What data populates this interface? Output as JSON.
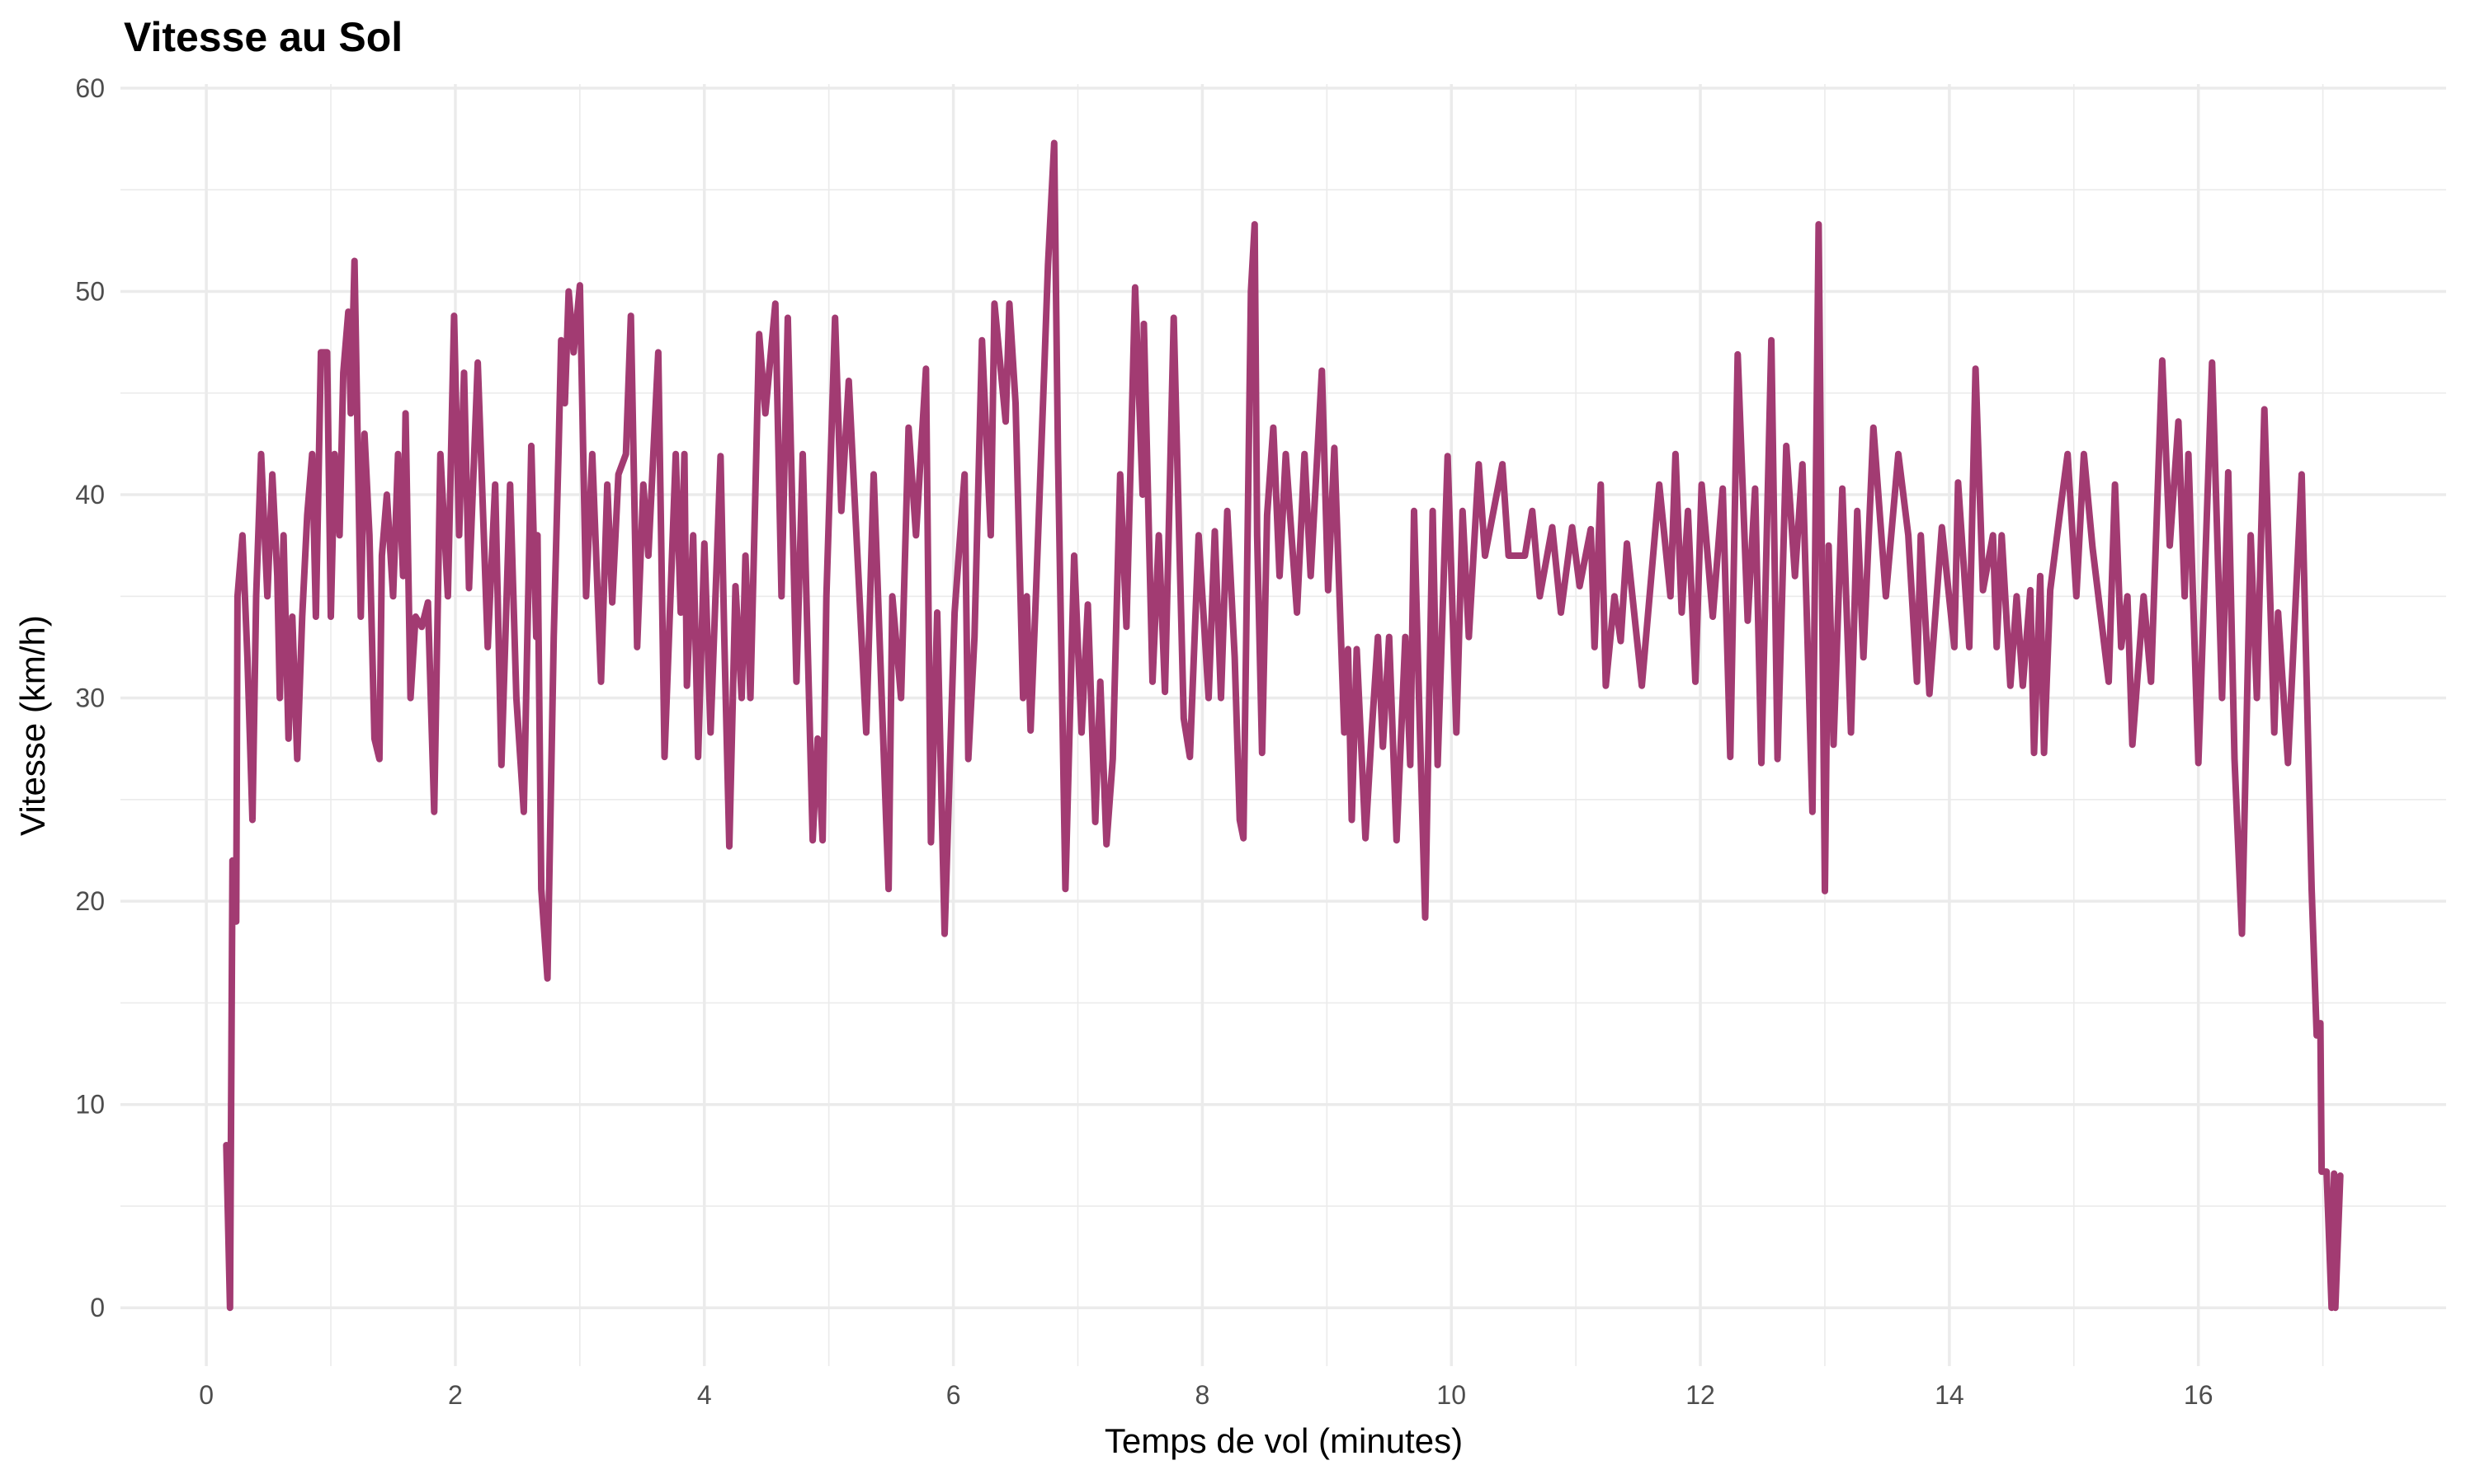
{
  "chart_data": {
    "type": "line",
    "title": "Vitesse au Sol",
    "xlabel": "Temps de vol (minutes)",
    "ylabel": "Vitesse (km/h)",
    "xlim": [
      -0.69,
      17.99
    ],
    "ylim": [
      -2.87,
      60.2
    ],
    "xticks": [
      0,
      2,
      4,
      6,
      8,
      10,
      12,
      14,
      16
    ],
    "yticks": [
      0,
      10,
      20,
      30,
      40,
      50,
      60
    ],
    "grid": true,
    "line_color": "#A23B72",
    "grid_color": "#EBEBEB",
    "series": [
      {
        "points": [
          [
            0.16,
            8
          ],
          [
            0.19,
            0
          ],
          [
            0.21,
            22
          ],
          [
            0.24,
            19
          ],
          [
            0.25,
            35
          ],
          [
            0.29,
            38
          ],
          [
            0.33,
            32
          ],
          [
            0.37,
            24
          ],
          [
            0.4,
            35
          ],
          [
            0.44,
            42
          ],
          [
            0.49,
            35
          ],
          [
            0.53,
            41
          ],
          [
            0.57,
            36
          ],
          [
            0.59,
            30
          ],
          [
            0.62,
            38
          ],
          [
            0.66,
            28
          ],
          [
            0.69,
            34
          ],
          [
            0.73,
            27
          ],
          [
            0.77,
            34
          ],
          [
            0.81,
            39
          ],
          [
            0.85,
            42
          ],
          [
            0.88,
            34
          ],
          [
            0.92,
            47
          ],
          [
            0.97,
            47
          ],
          [
            1.0,
            34
          ],
          [
            1.03,
            42
          ],
          [
            1.07,
            38
          ],
          [
            1.1,
            46
          ],
          [
            1.14,
            49
          ],
          [
            1.16,
            44
          ],
          [
            1.19,
            51.5
          ],
          [
            1.24,
            34
          ],
          [
            1.27,
            43
          ],
          [
            1.31,
            38
          ],
          [
            1.35,
            28
          ],
          [
            1.39,
            27
          ],
          [
            1.41,
            37
          ],
          [
            1.45,
            40
          ],
          [
            1.5,
            35
          ],
          [
            1.54,
            42
          ],
          [
            1.58,
            36
          ],
          [
            1.6,
            44
          ],
          [
            1.64,
            30
          ],
          [
            1.68,
            34
          ],
          [
            1.73,
            33.5
          ],
          [
            1.78,
            34.7
          ],
          [
            1.83,
            24.4
          ],
          [
            1.88,
            42
          ],
          [
            1.94,
            35
          ],
          [
            1.99,
            48.8
          ],
          [
            2.03,
            38
          ],
          [
            2.07,
            46
          ],
          [
            2.11,
            35.4
          ],
          [
            2.18,
            46.5
          ],
          [
            2.26,
            32.5
          ],
          [
            2.32,
            40.5
          ],
          [
            2.37,
            26.7
          ],
          [
            2.44,
            40.5
          ],
          [
            2.49,
            30
          ],
          [
            2.55,
            24.4
          ],
          [
            2.61,
            42.4
          ],
          [
            2.65,
            33
          ],
          [
            2.66,
            38
          ],
          [
            2.69,
            20.6
          ],
          [
            2.74,
            16.2
          ],
          [
            2.79,
            33
          ],
          [
            2.83,
            42.4
          ],
          [
            2.85,
            47.6
          ],
          [
            2.88,
            44.5
          ],
          [
            2.91,
            50
          ],
          [
            2.95,
            47
          ],
          [
            3.0,
            50.3
          ],
          [
            3.05,
            35
          ],
          [
            3.1,
            42
          ],
          [
            3.17,
            30.8
          ],
          [
            3.22,
            40.5
          ],
          [
            3.26,
            34.7
          ],
          [
            3.31,
            41
          ],
          [
            3.37,
            42
          ],
          [
            3.41,
            48.8
          ],
          [
            3.46,
            32.5
          ],
          [
            3.51,
            40.5
          ],
          [
            3.55,
            37
          ],
          [
            3.63,
            47
          ],
          [
            3.68,
            27.1
          ],
          [
            3.77,
            42
          ],
          [
            3.81,
            34.2
          ],
          [
            3.84,
            42
          ],
          [
            3.86,
            30.6
          ],
          [
            3.91,
            38
          ],
          [
            3.95,
            27.1
          ],
          [
            4.0,
            37.6
          ],
          [
            4.05,
            28.3
          ],
          [
            4.13,
            41.9
          ],
          [
            4.16,
            33
          ],
          [
            4.2,
            22.7
          ],
          [
            4.25,
            35.5
          ],
          [
            4.3,
            30
          ],
          [
            4.33,
            37
          ],
          [
            4.37,
            30
          ],
          [
            4.44,
            47.9
          ],
          [
            4.49,
            44
          ],
          [
            4.57,
            49.4
          ],
          [
            4.62,
            35
          ],
          [
            4.67,
            48.7
          ],
          [
            4.74,
            30.8
          ],
          [
            4.79,
            42
          ],
          [
            4.87,
            23
          ],
          [
            4.91,
            28
          ],
          [
            4.95,
            23
          ],
          [
            4.98,
            35
          ],
          [
            5.05,
            48.7
          ],
          [
            5.1,
            39.2
          ],
          [
            5.16,
            45.6
          ],
          [
            5.3,
            28.3
          ],
          [
            5.36,
            41
          ],
          [
            5.48,
            20.6
          ],
          [
            5.51,
            35
          ],
          [
            5.58,
            30
          ],
          [
            5.64,
            43.3
          ],
          [
            5.7,
            38
          ],
          [
            5.78,
            46.2
          ],
          [
            5.82,
            22.9
          ],
          [
            5.87,
            34.2
          ],
          [
            5.93,
            18.4
          ],
          [
            6.01,
            34.2
          ],
          [
            6.09,
            41
          ],
          [
            6.12,
            27
          ],
          [
            6.17,
            33
          ],
          [
            6.23,
            47.6
          ],
          [
            6.3,
            38
          ],
          [
            6.33,
            49.4
          ],
          [
            6.42,
            43.6
          ],
          [
            6.45,
            49.4
          ],
          [
            6.5,
            44.5
          ],
          [
            6.56,
            30
          ],
          [
            6.59,
            35
          ],
          [
            6.62,
            28.4
          ],
          [
            6.66,
            34.6
          ],
          [
            6.73,
            46.2
          ],
          [
            6.76,
            51.3
          ],
          [
            6.81,
            57.3
          ],
          [
            6.84,
            42
          ],
          [
            6.9,
            20.6
          ],
          [
            6.97,
            37
          ],
          [
            7.03,
            28.3
          ],
          [
            7.08,
            34.6
          ],
          [
            7.14,
            23.9
          ],
          [
            7.18,
            30.8
          ],
          [
            7.23,
            22.8
          ],
          [
            7.28,
            27
          ],
          [
            7.34,
            41
          ],
          [
            7.39,
            33.5
          ],
          [
            7.46,
            50.2
          ],
          [
            7.52,
            40
          ],
          [
            7.53,
            48.4
          ],
          [
            7.6,
            30.8
          ],
          [
            7.65,
            38
          ],
          [
            7.7,
            30.3
          ],
          [
            7.77,
            48.7
          ],
          [
            7.85,
            29
          ],
          [
            7.9,
            27.1
          ],
          [
            7.97,
            38
          ],
          [
            8.05,
            30
          ],
          [
            8.1,
            38.2
          ],
          [
            8.15,
            30
          ],
          [
            8.2,
            39.2
          ],
          [
            8.26,
            32
          ],
          [
            8.3,
            24
          ],
          [
            8.33,
            23.1
          ],
          [
            8.35,
            32
          ],
          [
            8.39,
            50
          ],
          [
            8.42,
            53.3
          ],
          [
            8.44,
            38
          ],
          [
            8.48,
            27.3
          ],
          [
            8.52,
            39
          ],
          [
            8.57,
            43.3
          ],
          [
            8.62,
            36
          ],
          [
            8.67,
            42
          ],
          [
            8.76,
            34.2
          ],
          [
            8.82,
            42
          ],
          [
            8.87,
            36
          ],
          [
            8.96,
            46.1
          ],
          [
            9.01,
            35.3
          ],
          [
            9.06,
            42.3
          ],
          [
            9.14,
            28.3
          ],
          [
            9.17,
            32.4
          ],
          [
            9.2,
            24
          ],
          [
            9.24,
            32.4
          ],
          [
            9.31,
            23.1
          ],
          [
            9.36,
            28.3
          ],
          [
            9.41,
            33
          ],
          [
            9.45,
            27.6
          ],
          [
            9.5,
            33
          ],
          [
            9.56,
            23
          ],
          [
            9.63,
            33
          ],
          [
            9.67,
            26.7
          ],
          [
            9.7,
            39.2
          ],
          [
            9.74,
            30
          ],
          [
            9.79,
            19.2
          ],
          [
            9.85,
            39.2
          ],
          [
            9.89,
            26.7
          ],
          [
            9.97,
            41.9
          ],
          [
            10.04,
            28.3
          ],
          [
            10.09,
            39.2
          ],
          [
            10.14,
            33
          ],
          [
            10.22,
            41.5
          ],
          [
            10.27,
            37
          ],
          [
            10.41,
            41.5
          ],
          [
            10.46,
            37
          ],
          [
            10.59,
            37
          ],
          [
            10.65,
            39.2
          ],
          [
            10.71,
            35
          ],
          [
            10.81,
            38.4
          ],
          [
            10.88,
            34.2
          ],
          [
            10.97,
            38.4
          ],
          [
            11.03,
            35.5
          ],
          [
            11.12,
            38.3
          ],
          [
            11.15,
            32.5
          ],
          [
            11.2,
            40.5
          ],
          [
            11.24,
            30.6
          ],
          [
            11.31,
            35
          ],
          [
            11.36,
            32.8
          ],
          [
            11.41,
            37.6
          ],
          [
            11.53,
            30.6
          ],
          [
            11.67,
            40.5
          ],
          [
            11.76,
            35
          ],
          [
            11.8,
            42
          ],
          [
            11.85,
            34.2
          ],
          [
            11.9,
            39.2
          ],
          [
            11.96,
            30.8
          ],
          [
            12.01,
            40.5
          ],
          [
            12.1,
            34
          ],
          [
            12.18,
            40.3
          ],
          [
            12.24,
            27.1
          ],
          [
            12.3,
            46.9
          ],
          [
            12.38,
            33.8
          ],
          [
            12.44,
            40.3
          ],
          [
            12.49,
            26.8
          ],
          [
            12.57,
            47.6
          ],
          [
            12.62,
            27
          ],
          [
            12.69,
            42.4
          ],
          [
            12.76,
            36
          ],
          [
            12.82,
            41.5
          ],
          [
            12.9,
            24.4
          ],
          [
            12.95,
            53.3
          ],
          [
            13.0,
            20.5
          ],
          [
            13.03,
            37.5
          ],
          [
            13.07,
            27.7
          ],
          [
            13.14,
            40.3
          ],
          [
            13.21,
            28.3
          ],
          [
            13.26,
            39.2
          ],
          [
            13.31,
            32
          ],
          [
            13.39,
            43.3
          ],
          [
            13.49,
            35
          ],
          [
            13.59,
            42
          ],
          [
            13.67,
            38
          ],
          [
            13.74,
            30.8
          ],
          [
            13.77,
            38
          ],
          [
            13.84,
            30.2
          ],
          [
            13.94,
            38.4
          ],
          [
            14.04,
            32.5
          ],
          [
            14.07,
            40.6
          ],
          [
            14.16,
            32.5
          ],
          [
            14.21,
            46.2
          ],
          [
            14.27,
            35.3
          ],
          [
            14.35,
            38
          ],
          [
            14.38,
            32.5
          ],
          [
            14.42,
            38
          ],
          [
            14.49,
            30.6
          ],
          [
            14.54,
            35
          ],
          [
            14.59,
            30.6
          ],
          [
            14.65,
            35.3
          ],
          [
            14.68,
            27.3
          ],
          [
            14.73,
            36
          ],
          [
            14.76,
            27.3
          ],
          [
            14.81,
            35.3
          ],
          [
            14.89,
            39.2
          ],
          [
            14.95,
            42
          ],
          [
            15.02,
            35
          ],
          [
            15.08,
            42
          ],
          [
            15.15,
            37.4
          ],
          [
            15.28,
            30.8
          ],
          [
            15.33,
            40.5
          ],
          [
            15.38,
            32.5
          ],
          [
            15.43,
            35
          ],
          [
            15.47,
            27.7
          ],
          [
            15.56,
            35
          ],
          [
            15.62,
            30.8
          ],
          [
            15.71,
            46.6
          ],
          [
            15.77,
            37.5
          ],
          [
            15.84,
            43.6
          ],
          [
            15.89,
            35
          ],
          [
            15.92,
            42
          ],
          [
            16.0,
            26.8
          ],
          [
            16.11,
            46.5
          ],
          [
            16.19,
            30
          ],
          [
            16.24,
            41.1
          ],
          [
            16.29,
            27
          ],
          [
            16.35,
            18.4
          ],
          [
            16.42,
            38
          ],
          [
            16.47,
            30
          ],
          [
            16.53,
            44.2
          ],
          [
            16.61,
            28.3
          ],
          [
            16.64,
            34.2
          ],
          [
            16.72,
            26.8
          ],
          [
            16.83,
            41
          ],
          [
            16.91,
            20.6
          ],
          [
            16.95,
            13.4
          ],
          [
            16.98,
            14
          ],
          [
            16.99,
            6.7
          ],
          [
            17.03,
            6.7
          ],
          [
            17.07,
            0
          ],
          [
            17.09,
            6.6
          ],
          [
            17.1,
            0
          ],
          [
            17.14,
            6.5
          ]
        ]
      }
    ]
  }
}
